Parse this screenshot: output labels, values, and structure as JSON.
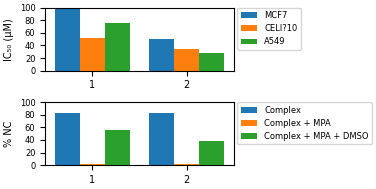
{
  "chart_data": [
    {
      "type": "bar",
      "ylabel": "IC₅₀ (μM)",
      "categories": [
        "1",
        "2"
      ],
      "series": [
        {
          "name": "MCF7",
          "values": [
            100,
            50
          ]
        },
        {
          "name": "CELI?10",
          "values": [
            52,
            35
          ]
        },
        {
          "name": "A549",
          "values": [
            75,
            28
          ]
        }
      ],
      "ylim": [
        0,
        100
      ],
      "yticks": [
        0,
        20,
        40,
        60,
        80,
        100
      ]
    },
    {
      "type": "bar",
      "ylabel": "% NC",
      "categories": [
        "1",
        "2"
      ],
      "series": [
        {
          "name": "Complex",
          "values": [
            82,
            83
          ]
        },
        {
          "name": "Complex + MPA",
          "values": [
            2,
            2
          ]
        },
        {
          "name": "Complex + MPA + DMSO",
          "values": [
            55,
            38
          ]
        }
      ],
      "ylim": [
        0,
        100
      ],
      "yticks": [
        0,
        20,
        40,
        60,
        80,
        100
      ]
    }
  ]
}
